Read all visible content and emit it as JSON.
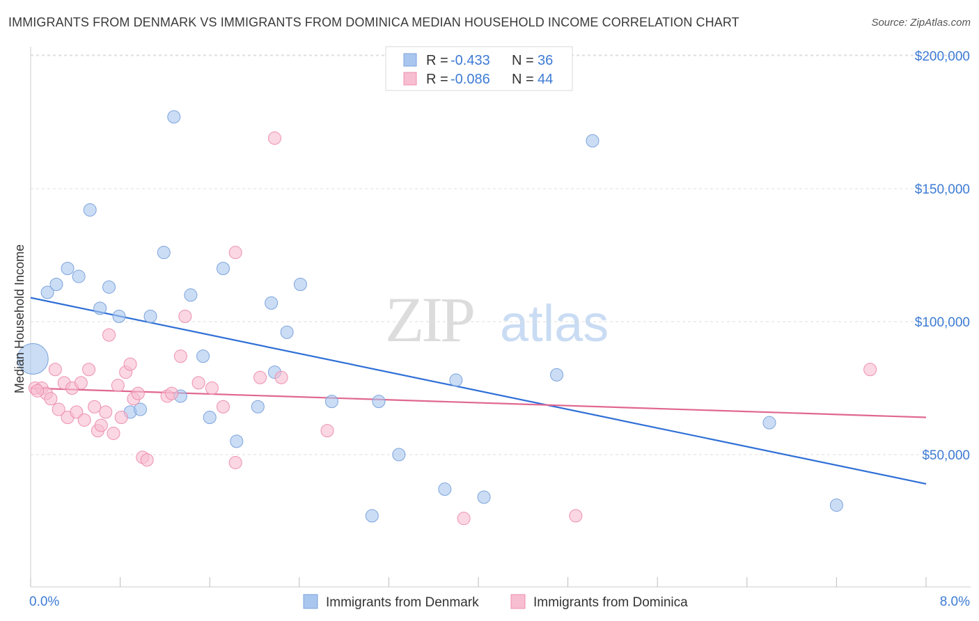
{
  "chart_data": {
    "type": "scatter",
    "title": "IMMIGRANTS FROM DENMARK VS IMMIGRANTS FROM DOMINICA MEDIAN HOUSEHOLD INCOME CORRELATION CHART",
    "source": "Source: ZipAtlas.com",
    "ylabel": "Median Household Income",
    "xlabel": "",
    "x_tick_labels": [
      "0.0%",
      "8.0%"
    ],
    "y_tick_labels": [
      "$50,000",
      "$100,000",
      "$150,000",
      "$200,000"
    ],
    "y_ticks": [
      50000,
      100000,
      150000,
      200000
    ],
    "xlim": [
      0,
      8
    ],
    "ylim": [
      0,
      205000
    ],
    "grid": true,
    "legend_position": "top-center",
    "watermark": "ZIPatlas",
    "legend": [
      {
        "r_label": "R = ",
        "r_value": "-0.433",
        "n_label": "N = ",
        "n_value": "36"
      },
      {
        "r_label": "R = ",
        "r_value": "-0.086",
        "n_label": "N = ",
        "n_value": "44"
      }
    ],
    "series": [
      {
        "name": "Immigrants from Denmark",
        "color": "#a9c6ef",
        "stroke": "#7ba3dd",
        "line_color": "#2e6fd6",
        "trend": {
          "x": [
            0.0,
            8.0
          ],
          "y": [
            109000,
            39000
          ]
        },
        "points": [
          {
            "x": 0.02,
            "y": 86000,
            "big": true
          },
          {
            "x": 0.15,
            "y": 111000
          },
          {
            "x": 0.23,
            "y": 114000
          },
          {
            "x": 0.33,
            "y": 120000
          },
          {
            "x": 0.43,
            "y": 117000
          },
          {
            "x": 0.53,
            "y": 142000
          },
          {
            "x": 0.62,
            "y": 105000
          },
          {
            "x": 0.7,
            "y": 113000
          },
          {
            "x": 0.79,
            "y": 102000
          },
          {
            "x": 0.89,
            "y": 66000
          },
          {
            "x": 0.98,
            "y": 67000
          },
          {
            "x": 1.07,
            "y": 102000
          },
          {
            "x": 1.19,
            "y": 126000
          },
          {
            "x": 1.28,
            "y": 177000
          },
          {
            "x": 1.34,
            "y": 72000
          },
          {
            "x": 1.43,
            "y": 110000
          },
          {
            "x": 1.54,
            "y": 87000
          },
          {
            "x": 1.6,
            "y": 64000
          },
          {
            "x": 1.72,
            "y": 120000
          },
          {
            "x": 1.84,
            "y": 55000
          },
          {
            "x": 2.03,
            "y": 68000
          },
          {
            "x": 2.15,
            "y": 107000
          },
          {
            "x": 2.18,
            "y": 81000
          },
          {
            "x": 2.29,
            "y": 96000
          },
          {
            "x": 2.41,
            "y": 114000
          },
          {
            "x": 2.69,
            "y": 70000
          },
          {
            "x": 3.05,
            "y": 27000
          },
          {
            "x": 3.11,
            "y": 70000
          },
          {
            "x": 3.29,
            "y": 50000
          },
          {
            "x": 3.7,
            "y": 37000
          },
          {
            "x": 3.8,
            "y": 78000
          },
          {
            "x": 4.05,
            "y": 34000
          },
          {
            "x": 4.7,
            "y": 80000
          },
          {
            "x": 5.02,
            "y": 168000
          },
          {
            "x": 6.6,
            "y": 62000
          },
          {
            "x": 7.2,
            "y": 31000
          }
        ]
      },
      {
        "name": "Immigrants from Dominica",
        "color": "#f7bdd0",
        "stroke": "#ee8fb0",
        "line_color": "#e0678f",
        "trend": {
          "x": [
            0.0,
            8.0
          ],
          "y": [
            75000,
            64000
          ]
        },
        "points": [
          {
            "x": 0.04,
            "y": 75000
          },
          {
            "x": 0.1,
            "y": 75000
          },
          {
            "x": 0.14,
            "y": 73000
          },
          {
            "x": 0.18,
            "y": 71000
          },
          {
            "x": 0.22,
            "y": 82000
          },
          {
            "x": 0.25,
            "y": 67000
          },
          {
            "x": 0.3,
            "y": 77000
          },
          {
            "x": 0.33,
            "y": 64000
          },
          {
            "x": 0.37,
            "y": 75000
          },
          {
            "x": 0.41,
            "y": 66000
          },
          {
            "x": 0.45,
            "y": 77000
          },
          {
            "x": 0.48,
            "y": 63000
          },
          {
            "x": 0.52,
            "y": 82000
          },
          {
            "x": 0.57,
            "y": 68000
          },
          {
            "x": 0.6,
            "y": 59000
          },
          {
            "x": 0.63,
            "y": 61000
          },
          {
            "x": 0.67,
            "y": 66000
          },
          {
            "x": 0.7,
            "y": 95000
          },
          {
            "x": 0.74,
            "y": 58000
          },
          {
            "x": 0.78,
            "y": 76000
          },
          {
            "x": 0.81,
            "y": 64000
          },
          {
            "x": 0.85,
            "y": 81000
          },
          {
            "x": 0.89,
            "y": 84000
          },
          {
            "x": 0.92,
            "y": 71000
          },
          {
            "x": 0.96,
            "y": 73000
          },
          {
            "x": 1.0,
            "y": 49000
          },
          {
            "x": 1.04,
            "y": 48000
          },
          {
            "x": 1.22,
            "y": 72000
          },
          {
            "x": 1.26,
            "y": 73000
          },
          {
            "x": 1.34,
            "y": 87000
          },
          {
            "x": 1.38,
            "y": 102000
          },
          {
            "x": 1.5,
            "y": 77000
          },
          {
            "x": 1.62,
            "y": 75000
          },
          {
            "x": 1.72,
            "y": 68000
          },
          {
            "x": 1.83,
            "y": 126000
          },
          {
            "x": 1.83,
            "y": 47000
          },
          {
            "x": 2.05,
            "y": 79000
          },
          {
            "x": 2.18,
            "y": 169000
          },
          {
            "x": 2.24,
            "y": 79000
          },
          {
            "x": 2.65,
            "y": 59000
          },
          {
            "x": 3.87,
            "y": 26000
          },
          {
            "x": 4.87,
            "y": 27000
          },
          {
            "x": 7.5,
            "y": 82000
          },
          {
            "x": 0.06,
            "y": 74000
          }
        ]
      }
    ]
  }
}
